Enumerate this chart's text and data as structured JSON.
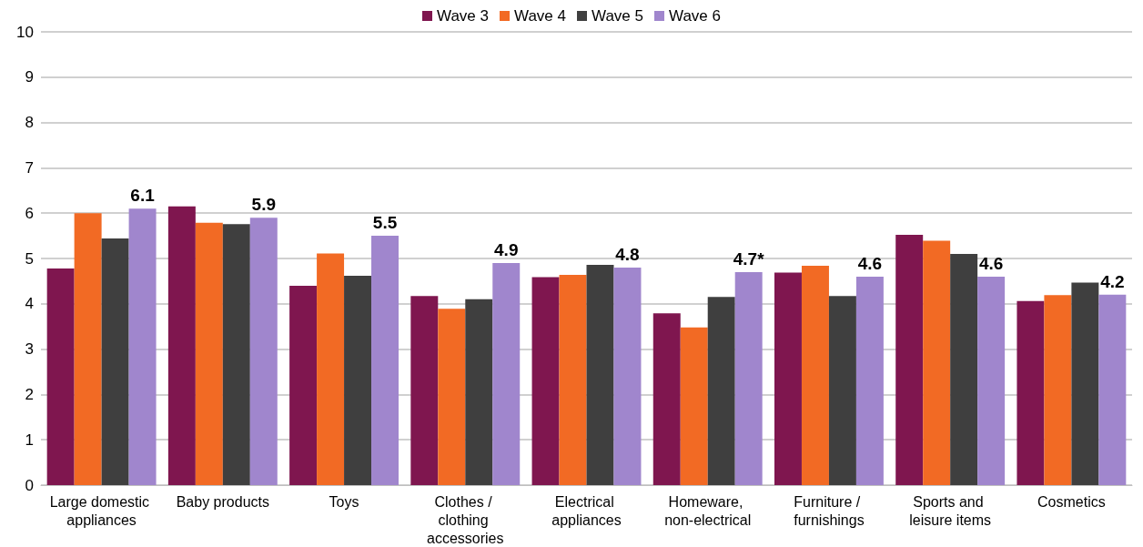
{
  "chart_data": {
    "type": "bar",
    "categories": [
      "Large domestic appliances",
      "Baby products",
      "Toys",
      "Clothes / clothing accessories",
      "Electrical appliances",
      "Homeware, non-electrical",
      "Furniture / furnishings",
      "Sports and leisure items",
      "Cosmetics"
    ],
    "series": [
      {
        "name": "Wave 3",
        "color": "#7f164f",
        "values": [
          4.78,
          6.15,
          4.4,
          4.17,
          4.59,
          3.79,
          4.69,
          5.52,
          4.06
        ]
      },
      {
        "name": "Wave 4",
        "color": "#f26a24",
        "values": [
          6.0,
          5.79,
          5.11,
          3.89,
          4.64,
          3.48,
          4.84,
          5.39,
          4.19
        ]
      },
      {
        "name": "Wave 5",
        "color": "#3f3f3f",
        "values": [
          5.44,
          5.76,
          4.62,
          4.1,
          4.86,
          4.15,
          4.17,
          5.1,
          4.47
        ]
      },
      {
        "name": "Wave 6",
        "color": "#a086cd",
        "values": [
          6.1,
          5.9,
          5.5,
          4.9,
          4.8,
          4.7,
          4.6,
          4.6,
          4.2
        ],
        "value_labels": [
          "6.1",
          "5.9",
          "5.5",
          "4.9",
          "4.8",
          "4.7*",
          "4.6",
          "4.6",
          "4.2"
        ]
      }
    ],
    "ylim": [
      0,
      10
    ],
    "yticks": [
      0,
      1,
      2,
      3,
      4,
      5,
      6,
      7,
      8,
      9,
      10
    ],
    "grid": "y",
    "legend": "top"
  }
}
